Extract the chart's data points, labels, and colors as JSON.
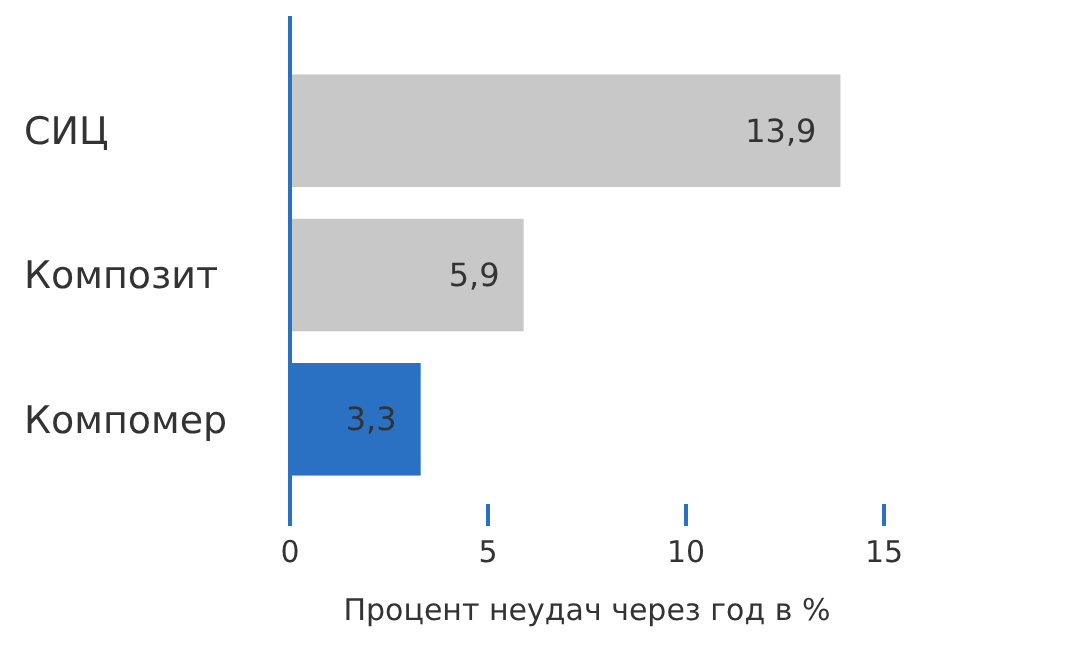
{
  "chart_data": {
    "type": "bar",
    "orientation": "horizontal",
    "xlabel": "Процент неудач через год в %",
    "categories": [
      "СИЦ",
      "Композит",
      "Компомер"
    ],
    "values": [
      13.9,
      5.9,
      3.3
    ],
    "colors": [
      "#c8c8c8",
      "#c8c8c8",
      "#2a71c4"
    ],
    "value_labels": [
      "13,9",
      "5,9",
      "3,3"
    ],
    "xlim": [
      0,
      15
    ],
    "xticks": [
      0,
      5,
      10,
      15
    ],
    "grid": false
  }
}
